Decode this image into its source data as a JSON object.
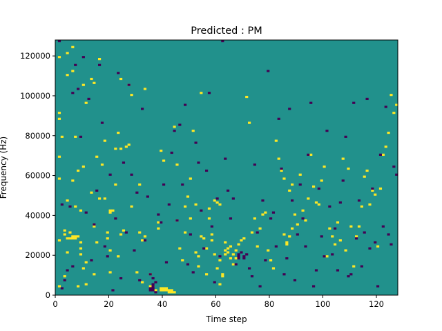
{
  "chart_data": {
    "type": "heatmap",
    "title": "Predicted : PM",
    "xlabel": "Time step",
    "ylabel": "Frequency (Hz)",
    "xlim": [
      0,
      128
    ],
    "ylim": [
      0,
      128000
    ],
    "xticks": [
      0,
      20,
      40,
      60,
      80,
      100,
      120
    ],
    "yticks": [
      0,
      20000,
      40000,
      60000,
      80000,
      100000,
      120000
    ],
    "grid": false,
    "n_time_steps": 128,
    "n_freq_bins": 128,
    "levels": [
      -1,
      0,
      1
    ],
    "colors": {
      "low": "#440154",
      "mid": "#21918c",
      "high": "#fde725"
    },
    "spikes_high": [
      [
        1,
        4
      ],
      [
        1,
        27
      ],
      [
        1,
        58
      ],
      [
        1,
        69
      ],
      [
        1,
        88
      ],
      [
        1,
        91
      ],
      [
        1,
        119
      ],
      [
        2,
        79
      ],
      [
        3,
        9
      ],
      [
        3,
        30
      ],
      [
        3,
        32
      ],
      [
        4,
        21
      ],
      [
        4,
        28
      ],
      [
        4,
        47
      ],
      [
        4,
        110
      ],
      [
        4,
        121
      ],
      [
        5,
        28
      ],
      [
        5,
        31
      ],
      [
        6,
        28
      ],
      [
        6,
        29
      ],
      [
        6,
        57
      ],
      [
        6,
        112
      ],
      [
        6,
        124
      ],
      [
        7,
        28
      ],
      [
        7,
        29
      ],
      [
        7,
        44
      ],
      [
        7,
        79
      ],
      [
        8,
        4
      ],
      [
        8,
        29
      ],
      [
        8,
        62
      ],
      [
        9,
        20
      ],
      [
        9,
        23
      ],
      [
        9,
        26
      ],
      [
        9,
        42
      ],
      [
        10,
        13
      ],
      [
        10,
        64
      ],
      [
        10,
        105
      ],
      [
        11,
        5
      ],
      [
        11,
        16
      ],
      [
        11,
        96
      ],
      [
        13,
        51
      ],
      [
        13,
        108
      ],
      [
        14,
        10
      ],
      [
        14,
        34
      ],
      [
        14,
        35
      ],
      [
        14,
        106
      ],
      [
        15,
        26
      ],
      [
        15,
        69
      ],
      [
        16,
        118
      ],
      [
        16,
        48
      ],
      [
        17,
        65
      ],
      [
        18,
        48
      ],
      [
        18,
        77
      ],
      [
        19,
        31
      ],
      [
        19,
        28
      ],
      [
        20,
        11
      ],
      [
        20,
        22
      ],
      [
        20,
        41
      ],
      [
        20,
        42
      ],
      [
        21,
        42
      ],
      [
        22,
        55
      ],
      [
        22,
        73
      ],
      [
        23,
        81
      ],
      [
        23,
        19
      ],
      [
        24,
        30
      ],
      [
        24,
        73
      ],
      [
        24,
        108
      ],
      [
        25,
        32
      ],
      [
        26,
        74
      ],
      [
        27,
        75
      ],
      [
        27,
        105
      ],
      [
        28,
        100
      ],
      [
        28,
        44
      ],
      [
        30,
        11
      ],
      [
        31,
        55
      ],
      [
        31,
        31
      ],
      [
        32,
        6
      ],
      [
        32,
        27
      ],
      [
        33,
        103
      ],
      [
        33,
        29
      ],
      [
        35,
        10
      ],
      [
        35,
        4
      ],
      [
        36,
        4
      ],
      [
        36,
        2
      ],
      [
        37,
        2
      ],
      [
        38,
        36
      ],
      [
        38,
        33
      ],
      [
        39,
        3
      ],
      [
        39,
        2
      ],
      [
        39,
        72
      ],
      [
        40,
        3
      ],
      [
        40,
        2
      ],
      [
        40,
        67
      ],
      [
        41,
        3
      ],
      [
        41,
        2
      ],
      [
        42,
        2
      ],
      [
        42,
        1
      ],
      [
        43,
        1
      ],
      [
        43,
        2
      ],
      [
        44,
        1
      ],
      [
        44,
        84
      ],
      [
        45,
        65
      ],
      [
        45,
        37
      ],
      [
        46,
        23
      ],
      [
        47,
        17
      ],
      [
        48,
        31
      ],
      [
        48,
        44
      ],
      [
        49,
        49
      ],
      [
        50,
        38
      ],
      [
        50,
        58
      ],
      [
        51,
        82
      ],
      [
        52,
        45
      ],
      [
        52,
        21
      ],
      [
        53,
        19
      ],
      [
        53,
        14
      ],
      [
        54,
        101
      ],
      [
        54,
        29
      ],
      [
        55,
        28
      ],
      [
        56,
        23
      ],
      [
        56,
        10
      ],
      [
        57,
        43
      ],
      [
        57,
        38
      ],
      [
        58,
        30
      ],
      [
        58,
        27
      ],
      [
        59,
        20
      ],
      [
        59,
        47
      ],
      [
        60,
        46
      ],
      [
        60,
        13
      ],
      [
        61,
        45
      ],
      [
        61,
        17
      ],
      [
        61,
        5
      ],
      [
        62,
        10
      ],
      [
        62,
        9
      ],
      [
        63,
        26
      ],
      [
        63,
        22
      ],
      [
        63,
        20
      ],
      [
        64,
        21
      ],
      [
        64,
        23
      ],
      [
        65,
        24
      ],
      [
        65,
        18
      ],
      [
        66,
        20
      ],
      [
        66,
        15
      ],
      [
        67,
        22
      ],
      [
        67,
        18
      ],
      [
        68,
        25
      ],
      [
        69,
        27
      ],
      [
        70,
        28
      ],
      [
        71,
        99
      ],
      [
        72,
        86
      ],
      [
        73,
        31
      ],
      [
        74,
        38
      ],
      [
        75,
        24
      ],
      [
        76,
        33
      ],
      [
        77,
        40
      ],
      [
        78,
        41
      ],
      [
        79,
        22
      ],
      [
        80,
        17
      ],
      [
        81,
        13
      ],
      [
        82,
        77
      ],
      [
        83,
        68
      ],
      [
        84,
        62
      ],
      [
        85,
        58
      ],
      [
        85,
        30
      ],
      [
        86,
        25
      ],
      [
        86,
        26
      ],
      [
        87,
        29
      ],
      [
        87,
        52
      ],
      [
        88,
        55
      ],
      [
        88,
        33
      ],
      [
        89,
        40
      ],
      [
        90,
        35
      ],
      [
        91,
        60
      ],
      [
        92,
        42
      ],
      [
        93,
        37
      ],
      [
        94,
        48
      ],
      [
        95,
        70
      ],
      [
        96,
        54
      ],
      [
        97,
        46
      ],
      [
        98,
        45
      ],
      [
        99,
        57
      ],
      [
        100,
        64
      ],
      [
        101,
        19
      ],
      [
        102,
        33
      ],
      [
        103,
        29
      ],
      [
        104,
        25
      ],
      [
        105,
        36
      ],
      [
        106,
        27
      ],
      [
        107,
        68
      ],
      [
        108,
        22
      ],
      [
        109,
        63
      ],
      [
        110,
        34
      ],
      [
        111,
        14
      ],
      [
        112,
        29
      ],
      [
        113,
        34
      ],
      [
        114,
        44
      ],
      [
        115,
        59
      ],
      [
        116,
        62
      ],
      [
        117,
        45
      ],
      [
        118,
        52
      ],
      [
        119,
        50
      ],
      [
        120,
        24
      ],
      [
        121,
        53
      ],
      [
        122,
        70
      ],
      [
        123,
        74
      ],
      [
        124,
        81
      ],
      [
        125,
        100
      ],
      [
        126,
        91
      ],
      [
        127,
        95
      ]
    ],
    "spikes_low": [
      [
        1,
        127
      ],
      [
        2,
        3
      ],
      [
        2,
        45
      ],
      [
        3,
        7
      ],
      [
        4,
        12
      ],
      [
        5,
        44
      ],
      [
        6,
        14
      ],
      [
        6,
        101
      ],
      [
        7,
        115
      ],
      [
        8,
        103
      ],
      [
        9,
        79
      ],
      [
        10,
        119
      ],
      [
        11,
        41
      ],
      [
        12,
        98
      ],
      [
        13,
        17
      ],
      [
        14,
        35
      ],
      [
        15,
        52
      ],
      [
        16,
        115
      ],
      [
        17,
        86
      ],
      [
        18,
        24
      ],
      [
        19,
        19
      ],
      [
        20,
        60
      ],
      [
        21,
        2
      ],
      [
        22,
        38
      ],
      [
        23,
        111
      ],
      [
        24,
        8
      ],
      [
        25,
        66
      ],
      [
        26,
        31
      ],
      [
        27,
        105
      ],
      [
        28,
        60
      ],
      [
        29,
        22
      ],
      [
        30,
        51
      ],
      [
        31,
        7
      ],
      [
        32,
        93
      ],
      [
        33,
        27
      ],
      [
        34,
        49
      ],
      [
        35,
        10
      ],
      [
        35,
        3
      ],
      [
        35,
        2
      ],
      [
        36,
        8
      ],
      [
        36,
        5
      ],
      [
        36,
        4
      ],
      [
        36,
        3
      ],
      [
        36,
        2
      ],
      [
        37,
        6
      ],
      [
        37,
        1
      ],
      [
        38,
        40
      ],
      [
        39,
        36
      ],
      [
        40,
        55
      ],
      [
        41,
        16
      ],
      [
        42,
        45
      ],
      [
        43,
        71
      ],
      [
        44,
        82
      ],
      [
        45,
        37
      ],
      [
        46,
        85
      ],
      [
        47,
        55
      ],
      [
        48,
        95
      ],
      [
        49,
        15
      ],
      [
        50,
        30
      ],
      [
        51,
        11
      ],
      [
        52,
        76
      ],
      [
        53,
        66
      ],
      [
        54,
        42
      ],
      [
        55,
        23
      ],
      [
        56,
        62
      ],
      [
        57,
        101
      ],
      [
        58,
        34
      ],
      [
        59,
        6
      ],
      [
        60,
        48
      ],
      [
        61,
        19
      ],
      [
        62,
        127
      ],
      [
        63,
        68
      ],
      [
        64,
        52
      ],
      [
        65,
        38
      ],
      [
        66,
        48
      ],
      [
        67,
        15
      ],
      [
        68,
        20
      ],
      [
        68,
        19
      ],
      [
        68,
        18
      ],
      [
        69,
        21
      ],
      [
        70,
        19
      ],
      [
        70,
        18
      ],
      [
        71,
        20
      ],
      [
        72,
        13
      ],
      [
        73,
        9
      ],
      [
        74,
        65
      ],
      [
        75,
        31
      ],
      [
        76,
        4
      ],
      [
        77,
        47
      ],
      [
        78,
        17
      ],
      [
        79,
        112
      ],
      [
        80,
        38
      ],
      [
        81,
        41
      ],
      [
        82,
        24
      ],
      [
        83,
        88
      ],
      [
        84,
        63
      ],
      [
        85,
        10
      ],
      [
        86,
        18
      ],
      [
        87,
        93
      ],
      [
        88,
        47
      ],
      [
        89,
        7
      ],
      [
        90,
        30
      ],
      [
        91,
        55
      ],
      [
        92,
        38
      ],
      [
        93,
        24
      ],
      [
        94,
        70
      ],
      [
        95,
        96
      ],
      [
        96,
        4
      ],
      [
        97,
        12
      ],
      [
        98,
        53
      ],
      [
        99,
        29
      ],
      [
        100,
        19
      ],
      [
        101,
        82
      ],
      [
        102,
        44
      ],
      [
        103,
        20
      ],
      [
        104,
        33
      ],
      [
        105,
        12
      ],
      [
        106,
        46
      ],
      [
        107,
        57
      ],
      [
        108,
        79
      ],
      [
        109,
        9
      ],
      [
        110,
        10
      ],
      [
        111,
        96
      ],
      [
        112,
        28
      ],
      [
        113,
        47
      ],
      [
        114,
        14
      ],
      [
        115,
        31
      ],
      [
        116,
        98
      ],
      [
        117,
        23
      ],
      [
        118,
        53
      ],
      [
        119,
        26
      ],
      [
        120,
        4
      ],
      [
        121,
        70
      ],
      [
        122,
        34
      ],
      [
        123,
        94
      ],
      [
        124,
        30
      ],
      [
        125,
        25
      ],
      [
        126,
        64
      ],
      [
        127,
        60
      ]
    ]
  }
}
